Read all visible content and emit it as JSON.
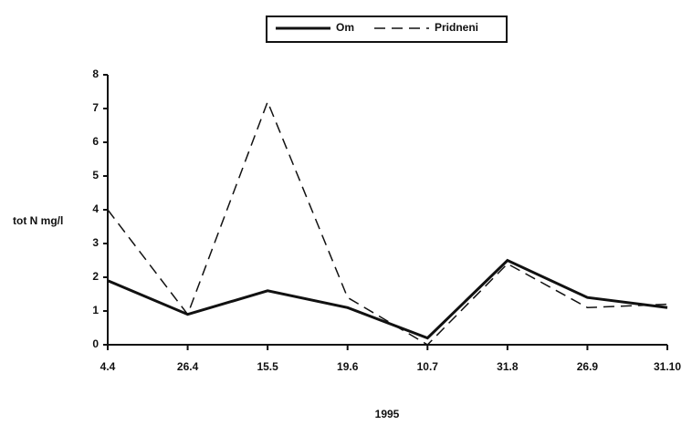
{
  "chart_data": {
    "type": "line",
    "y_label": "tot N mg/l",
    "x_label": "1995",
    "categories": [
      "4.4",
      "26.4",
      "15.5",
      "19.6",
      "10.7",
      "31.8",
      "26.9",
      "31.10"
    ],
    "series": [
      {
        "name": "Om",
        "color": "#111111",
        "style": "solid",
        "values": [
          1.9,
          0.9,
          1.6,
          1.1,
          0.2,
          2.5,
          1.4,
          1.1
        ]
      },
      {
        "name": "Pridneni",
        "color": "#111111",
        "style": "dashed",
        "values": [
          4.0,
          0.9,
          7.2,
          1.4,
          0.0,
          2.4,
          1.1,
          1.2
        ]
      }
    ],
    "ylim": [
      0,
      8
    ],
    "yticks": [
      0,
      1,
      2,
      3,
      4,
      5,
      6,
      7,
      8
    ],
    "grid": false,
    "legend": "top"
  }
}
